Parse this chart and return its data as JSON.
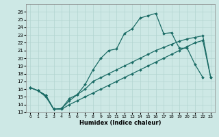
{
  "background_color": "#cde8e5",
  "grid_color": "#b2d4d0",
  "line_color": "#1a6b65",
  "xlabel": "Humidex (Indice chaleur)",
  "xlim": [
    -0.5,
    23.5
  ],
  "ylim": [
    13,
    27
  ],
  "yticks": [
    13,
    14,
    15,
    16,
    17,
    18,
    19,
    20,
    21,
    22,
    23,
    24,
    25,
    26
  ],
  "xticks": [
    0,
    1,
    2,
    3,
    4,
    5,
    6,
    7,
    8,
    9,
    10,
    11,
    12,
    13,
    14,
    15,
    16,
    17,
    18,
    19,
    20,
    21,
    22,
    23
  ],
  "upper_x": [
    0,
    1,
    2,
    3,
    4,
    5,
    6,
    7,
    8,
    9,
    10,
    11,
    12,
    13,
    14,
    15,
    16,
    17,
    18,
    19,
    20,
    21,
    22
  ],
  "upper_y": [
    16.2,
    15.8,
    15.2,
    13.4,
    13.5,
    14.8,
    15.3,
    16.6,
    18.5,
    20.0,
    21.0,
    21.2,
    23.2,
    23.8,
    25.2,
    25.5,
    25.8,
    23.2,
    23.3,
    21.3,
    21.3,
    19.2,
    17.5
  ],
  "mid_x": [
    0,
    1,
    2,
    3,
    4,
    5,
    6,
    7,
    8,
    9,
    10,
    11,
    12,
    13,
    14,
    15,
    16,
    17,
    18,
    19,
    20,
    21,
    22,
    23
  ],
  "mid_y": [
    16.2,
    15.8,
    15.2,
    13.4,
    13.5,
    14.5,
    15.3,
    16.0,
    17.0,
    17.5,
    18.0,
    18.5,
    19.0,
    19.5,
    20.0,
    20.5,
    21.0,
    21.4,
    21.8,
    22.2,
    22.5,
    22.7,
    22.9,
    17.5
  ],
  "lower_x": [
    0,
    1,
    2,
    3,
    4,
    5,
    6,
    7,
    8,
    9,
    10,
    11,
    12,
    13,
    14,
    15,
    16,
    17,
    18,
    19,
    20,
    21,
    22,
    23
  ],
  "lower_y": [
    16.2,
    15.8,
    15.0,
    13.4,
    13.4,
    14.0,
    14.5,
    15.0,
    15.5,
    16.0,
    16.5,
    17.0,
    17.5,
    18.0,
    18.5,
    19.0,
    19.5,
    20.0,
    20.5,
    21.0,
    21.5,
    22.0,
    22.3,
    17.5
  ]
}
